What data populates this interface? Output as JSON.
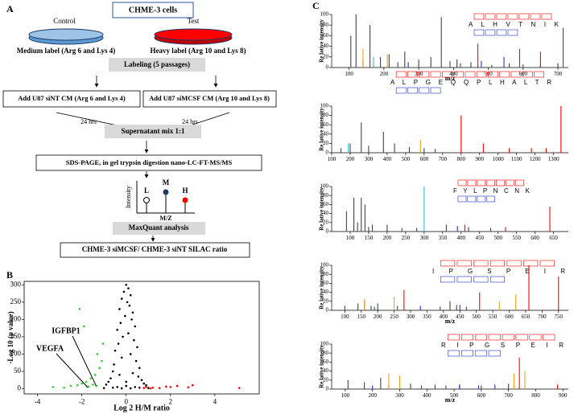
{
  "panel_a": {
    "label": "A",
    "cells": "CHME-3  cells",
    "control": "Control",
    "test": "Test",
    "medium_label": "Medium  label (Arg 6 and Lys 4)",
    "heavy_label": "Heavy  label (Arg 10 and Lys 8)",
    "labeling": "Labeling (5 passages)",
    "add_sint": "Add  U87 siNT CM (Arg 6 and Lys 4)",
    "add_simcsf": "Add  U87 siMCSF CM (Arg 10 and Lys 8)",
    "time_left": "24 hrs",
    "time_right": "24 hrs",
    "mix": "Supernatant  mix 1:1",
    "digestion": "SDS-PAGE,  in gel trypsin digestion  nano-LC-FT-MS/MS",
    "intensity": "Intensity",
    "peak_l": "L",
    "peak_m": "M",
    "peak_h": "H",
    "mz": "M/Z",
    "maxquant": "MaxQuant  analysis",
    "ratio": "CHME-3  siMCSF/ CHME-3  siNT SILAC ratio"
  },
  "chart_data": [
    {
      "type": "scatter",
      "panel": "B",
      "xlabel": "Log 2 H/M ratio",
      "ylabel": "-Log 10 (p value)",
      "xlim": [
        -4.6,
        6
      ],
      "xticks": [
        -4,
        -2,
        0,
        2,
        4
      ],
      "ylim": [
        -15,
        310
      ],
      "yticks": [
        0,
        50,
        100,
        150,
        200,
        250,
        300
      ],
      "series": [
        {
          "color": "#000000",
          "x": [
            0,
            0.1,
            -0.1,
            0.2,
            -0.2,
            0.05,
            0.15,
            -0.3,
            0.3,
            -0.05,
            0.25,
            -0.25,
            0.4,
            -0.4,
            0.1,
            -0.15,
            0.35,
            -0.35,
            0.5,
            -0.5,
            0.2,
            -0.2,
            0.45,
            -0.55,
            0.6,
            -0.6,
            0.3,
            -0.3,
            0.55,
            -0.7,
            0.7,
            -0.8,
            0.8,
            -0.9,
            0.9,
            0,
            0.4,
            -0.4,
            0.6,
            -0.6,
            1,
            -1,
            0.2,
            -0.2,
            0
          ],
          "values": [
            300,
            290,
            280,
            270,
            260,
            250,
            240,
            230,
            220,
            210,
            200,
            190,
            180,
            170,
            160,
            150,
            140,
            130,
            120,
            110,
            100,
            90,
            80,
            70,
            60,
            50,
            45,
            40,
            35,
            30,
            25,
            20,
            15,
            12,
            10,
            8,
            5,
            5,
            3,
            3,
            2,
            2,
            1,
            1,
            20
          ]
        },
        {
          "color": "#33cc33",
          "x": [
            -1.2,
            -1.4,
            -1.6,
            -1.1,
            -1.8,
            -2,
            -2.2,
            -2.5,
            -3.3,
            -1.3,
            -1.5,
            -1.7,
            -2.1,
            -1.9,
            -1.05,
            -2.8,
            -1.35,
            -1.75
          ],
          "values": [
            60,
            40,
            30,
            80,
            20,
            15,
            10,
            8,
            5,
            100,
            12,
            6,
            230,
            180,
            130,
            3,
            8,
            5
          ]
        },
        {
          "color": "#ff0000",
          "x": [
            0.8,
            1.2,
            1.5,
            2,
            2.3,
            2.8,
            3,
            1.8,
            5.1,
            1.1,
            0.9
          ],
          "values": [
            2,
            3,
            2,
            5,
            8,
            4,
            10,
            6,
            2,
            1,
            5
          ]
        }
      ],
      "annotations": [
        {
          "text": "IGFBP1",
          "x": -1.35,
          "y": 8
        },
        {
          "text": "VEGFA",
          "x": -1.75,
          "y": 5
        }
      ]
    },
    {
      "type": "stem",
      "panel": "C",
      "xlabel": "m/z",
      "ylabel": "Re lative intensity",
      "sequence": "A L H V T N I K",
      "xlim": [
        50,
        730
      ],
      "xticks": [
        100,
        200,
        300,
        400,
        500,
        600,
        700
      ],
      "ylim": [
        0,
        100
      ],
      "yticks": [
        0,
        20,
        40,
        60,
        80,
        100
      ],
      "series": [
        {
          "color": "#444444",
          "x": [
            105,
            120,
            140,
            160,
            190,
            215,
            240,
            260,
            300,
            335,
            365,
            390,
            420,
            450,
            510,
            560,
            600,
            650,
            700
          ],
          "values": [
            60,
            100,
            15,
            80,
            20,
            25,
            10,
            30,
            15,
            20,
            95,
            12,
            8,
            10,
            5,
            8,
            6,
            5,
            8
          ]
        },
        {
          "color": "#ff0000",
          "x": [
            470,
            590,
            650,
            715
          ],
          "values": [
            45,
            35,
            30,
            75
          ]
        },
        {
          "color": "#2233cc",
          "x": [
            270,
            410,
            480,
            545
          ],
          "values": [
            10,
            15,
            12,
            20
          ]
        },
        {
          "color": "#f0a020",
          "x": [
            140,
            210
          ],
          "values": [
            35,
            25
          ]
        },
        {
          "color": "#33bbee",
          "x": [
            170
          ],
          "values": [
            20
          ]
        }
      ]
    },
    {
      "type": "stem",
      "ylabel": "Re lative intensity",
      "sequence": "A L P G E Q Q P L H A L T R",
      "xlim": [
        100,
        1380
      ],
      "xticks": [
        100,
        200,
        300,
        400,
        500,
        600,
        700,
        800,
        900,
        1000,
        1100,
        1200,
        1300
      ],
      "ylim": [
        0,
        100
      ],
      "yticks": [
        0,
        20,
        40,
        60,
        80,
        100
      ],
      "series": [
        {
          "color": "#444444",
          "x": [
            150,
            200,
            260,
            300,
            380,
            440,
            520,
            600,
            660
          ],
          "values": [
            10,
            20,
            65,
            15,
            45,
            20,
            12,
            10,
            8
          ]
        },
        {
          "color": "#ff0000",
          "x": [
            800,
            920,
            1060,
            1180,
            1260,
            1340
          ],
          "values": [
            80,
            20,
            10,
            10,
            10,
            100
          ]
        },
        {
          "color": "#33bbee",
          "x": [
            190
          ],
          "values": [
            20
          ]
        },
        {
          "color": "#f0a020",
          "x": [
            580
          ],
          "values": [
            28
          ]
        }
      ]
    },
    {
      "type": "stem",
      "ylabel": "Re lative intensity",
      "sequence": "F Y L P N C N K",
      "xlim": [
        50,
        690
      ],
      "xticks": [
        100,
        150,
        200,
        250,
        300,
        350,
        400,
        450,
        500,
        550,
        600,
        650
      ],
      "ylim": [
        0,
        100
      ],
      "yticks": [
        0,
        20,
        40,
        60,
        80,
        100
      ],
      "series": [
        {
          "color": "#444444",
          "x": [
            90,
            110,
            120,
            130,
            140,
            150,
            160,
            200,
            240,
            360,
            420,
            480
          ],
          "values": [
            45,
            75,
            20,
            75,
            60,
            10,
            15,
            15,
            8,
            15,
            10,
            8
          ]
        },
        {
          "color": "#33bbee",
          "x": [
            300
          ],
          "values": [
            100
          ]
        },
        {
          "color": "#ff0000",
          "x": [
            640,
            410,
            520
          ],
          "values": [
            55,
            15,
            10
          ]
        },
        {
          "color": "#2233cc",
          "x": [
            280,
            390
          ],
          "values": [
            8,
            12
          ]
        }
      ]
    },
    {
      "type": "stem",
      "xlabel": "m/z",
      "ylabel": "Re lative intensity",
      "sequence": "I P G S P E I R",
      "xlim": [
        60,
        780
      ],
      "xticks": [
        100,
        150,
        200,
        250,
        300,
        350,
        400,
        450,
        500,
        550,
        600,
        650,
        700,
        750
      ],
      "ylim": [
        0,
        100
      ],
      "yticks": [
        0,
        20,
        40,
        60,
        80,
        100
      ],
      "series": [
        {
          "color": "#444444",
          "x": [
            100,
            140,
            160,
            180,
            200,
            260,
            390,
            420,
            440,
            470
          ],
          "values": [
            10,
            15,
            20,
            10,
            15,
            10,
            8,
            20,
            12,
            8
          ]
        },
        {
          "color": "#ff0000",
          "x": [
            280,
            510,
            660,
            750
          ],
          "values": [
            45,
            40,
            100,
            75
          ]
        },
        {
          "color": "#f0a020",
          "x": [
            160,
            250,
            570,
            620
          ],
          "values": [
            25,
            30,
            20,
            35
          ]
        },
        {
          "color": "#2233cc",
          "x": [
            190,
            330,
            450
          ],
          "values": [
            8,
            10,
            12
          ]
        }
      ]
    },
    {
      "type": "stem",
      "xlabel": "m/z",
      "ylabel": "Re lative intensity",
      "sequence": "R I P G S P E I R",
      "xlim": [
        50,
        920
      ],
      "xticks": [
        100,
        200,
        300,
        400,
        500,
        600,
        700,
        800,
        900
      ],
      "ylim": [
        0,
        100
      ],
      "yticks": [
        0,
        20,
        40,
        60,
        80,
        100
      ],
      "series": [
        {
          "color": "#444444",
          "x": [
            110,
            170,
            230,
            260,
            340,
            380,
            430,
            470,
            520,
            600,
            700
          ],
          "values": [
            20,
            15,
            25,
            10,
            12,
            8,
            10,
            8,
            10,
            8,
            12
          ]
        },
        {
          "color": "#f0a020",
          "x": [
            260,
            300,
            720,
            760
          ],
          "values": [
            35,
            30,
            35,
            40
          ]
        },
        {
          "color": "#ff0000",
          "x": [
            740,
            880
          ],
          "values": [
            70,
            10
          ]
        },
        {
          "color": "#2233cc",
          "x": [
            200,
            520,
            590,
            650
          ],
          "values": [
            8,
            10,
            8,
            10
          ]
        }
      ]
    }
  ]
}
